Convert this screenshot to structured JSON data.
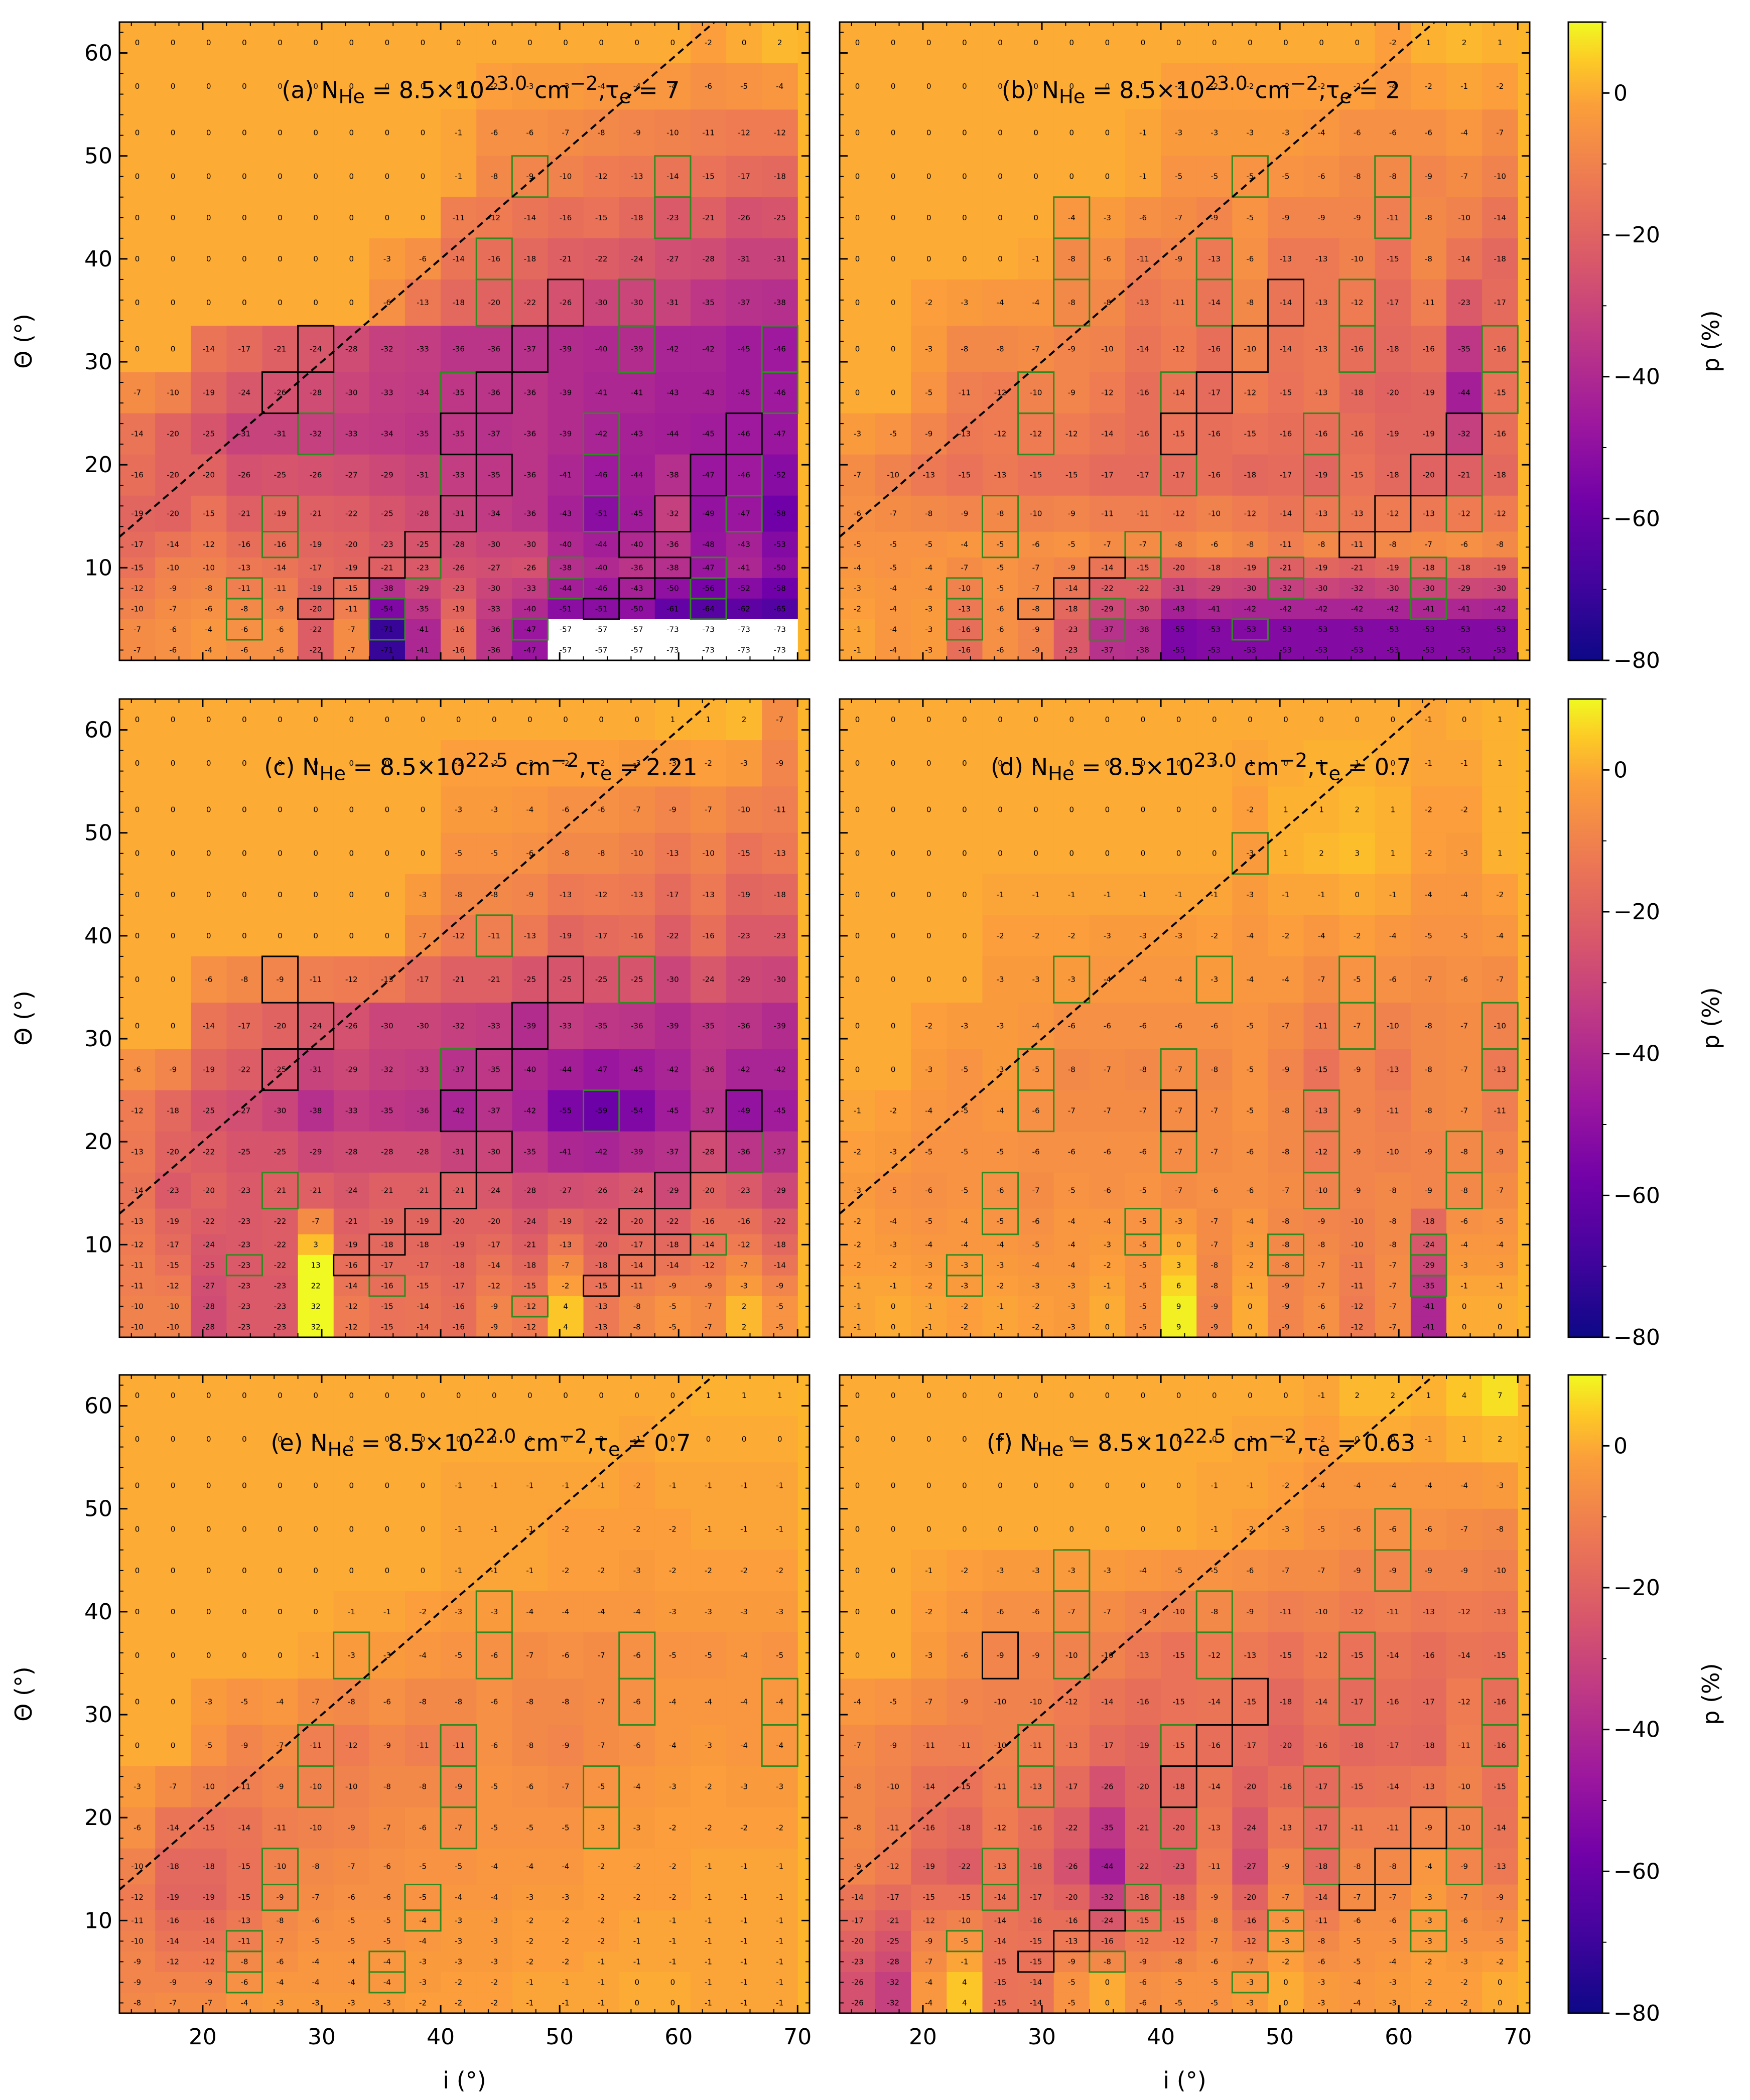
{
  "figure": {
    "colorbar": {
      "label": "p (%)",
      "ticks": [
        0,
        -20,
        -40,
        -60,
        -80
      ],
      "range": [
        -80,
        10
      ],
      "colormap": "plasma"
    },
    "x_axis": {
      "label": "i (°)",
      "ticks": [
        20,
        30,
        40,
        50,
        60,
        70
      ],
      "range": [
        13,
        71
      ]
    },
    "y_axis": {
      "label": "Θ (°)",
      "ticks": [
        10,
        20,
        30,
        40,
        50,
        60
      ],
      "range": [
        1,
        63
      ]
    },
    "diagonal_line": {
      "style": "dashed",
      "color": "#000000",
      "meaning": "Θ = i"
    },
    "box_colors": {
      "green": "#2f8b1f",
      "black": "#000000"
    }
  },
  "chart_data": [
    {
      "type": "heatmap",
      "panel": "(a)",
      "title_html": "(a) N<sub>He</sub> = 8.5×10<sup>23.0</sup> cm<sup>−2</sup>,τ<sub>e</sub> = 7",
      "title_text": "(a) NHe = 8.5×10^23.0 cm−2, τe = 7",
      "x": [
        14.5,
        17.5,
        20.5,
        23.5,
        26.5,
        29.5,
        32.5,
        35.5,
        38.5,
        41.5,
        44.5,
        47.5,
        50.5,
        53.5,
        56.5,
        59.5,
        62.5,
        65.5,
        68.5
      ],
      "y": [
        61,
        57,
        52,
        48,
        44,
        40,
        36,
        31,
        27,
        23,
        19,
        15,
        12,
        10,
        8,
        6,
        4,
        2
      ],
      "values_by_row": {
        "61": [
          0,
          0,
          0,
          0,
          0,
          0,
          0,
          0,
          0,
          0,
          0,
          0,
          0,
          0,
          0,
          0,
          -2,
          0,
          2
        ],
        "48": [
          0,
          0,
          0,
          0,
          0,
          0,
          0,
          0,
          0,
          -1,
          -8,
          -9,
          -10,
          -12,
          -13,
          -14,
          -15,
          -17,
          -18
        ],
        "44": [
          0,
          0,
          0,
          0,
          0,
          0,
          0,
          0,
          0,
          -11,
          -12,
          -14,
          -16,
          -15,
          -18,
          -23,
          -21,
          -26,
          -25
        ],
        "36": [
          0,
          0,
          0,
          0,
          0,
          0,
          0,
          -6,
          -13,
          -18,
          -20,
          -22,
          -26,
          -30,
          -30,
          -31,
          -35,
          -37,
          -38
        ],
        "31": [
          0,
          0,
          -14,
          -17,
          -21,
          -24,
          -28,
          -32,
          -33,
          -36,
          -36,
          -37,
          -39,
          -40,
          -39,
          -42,
          -42,
          -45,
          -46
        ],
        "23": [
          -14,
          -20,
          -25,
          -31,
          -31,
          -32,
          -33,
          -34,
          -35,
          -35,
          -37,
          -36,
          -39,
          -42,
          -43,
          -44,
          -45,
          -46,
          -47
        ],
        "15": [
          -19,
          -20,
          -15,
          -21,
          -19,
          -21,
          -22,
          -25,
          -28,
          -31,
          -34,
          -36,
          -43,
          -51,
          -45,
          -32,
          -49,
          -47,
          -58
        ],
        "10": [
          -15,
          -10,
          -10,
          -13,
          -14,
          -17,
          -19,
          -21,
          -23,
          -26,
          -27,
          -26,
          -38,
          -40,
          -36,
          -38,
          -47,
          -41,
          -50
        ],
        "4": [
          -7,
          -6,
          -4,
          -6,
          -6,
          -22,
          -7,
          -71,
          -41,
          -16,
          -36,
          -47,
          -57,
          -57,
          -57,
          -73,
          -73,
          -73,
          -73
        ]
      },
      "boxed_black": 24,
      "boxed_green": 55
    },
    {
      "type": "heatmap",
      "panel": "(b)",
      "title_html": "(b) N<sub>He</sub> = 8.5×10<sup>23.0</sup> cm<sup>−2</sup>,τ<sub>e</sub> = 2",
      "title_text": "(b) NHe = 8.5×10^23.0 cm−2, τe = 2",
      "values_by_row": {
        "61": [
          0,
          0,
          0,
          0,
          0,
          0,
          0,
          0,
          0,
          0,
          0,
          0,
          0,
          0,
          0,
          -2,
          1,
          2,
          1
        ],
        "48": [
          0,
          0,
          0,
          0,
          0,
          0,
          0,
          0,
          -1,
          -5,
          -5,
          -5,
          -5,
          -6,
          -8,
          -8,
          -9,
          -7,
          -10
        ],
        "40": [
          0,
          0,
          0,
          0,
          0,
          -1,
          -8,
          -6,
          -11,
          -9,
          -13,
          -6,
          -13,
          -13,
          -10,
          -15,
          -8,
          -14,
          -18
        ],
        "27": [
          0,
          0,
          -5,
          -11,
          -12,
          -10,
          -9,
          -12,
          -16,
          -14,
          -17,
          -12,
          -15,
          -13,
          -18,
          -20,
          -19,
          -44,
          -15
        ],
        "19": [
          -7,
          -10,
          -13,
          -15,
          -13,
          -15,
          -15,
          -17,
          -17,
          -17,
          -16,
          -18,
          -17,
          -19,
          -15,
          -18,
          -20,
          -21,
          -18
        ],
        "12": [
          -5,
          -5,
          -5,
          -4,
          -5,
          -6,
          -5,
          -7,
          -7,
          -8,
          -6,
          -8,
          -11,
          -8,
          -11,
          -8,
          -7,
          -6,
          -8
        ],
        "4": [
          -1,
          -4,
          -3,
          -16,
          -6,
          -9,
          -23,
          -37,
          -38,
          -55,
          -53,
          -53,
          -53,
          -53,
          -53,
          -53,
          -53,
          -53,
          -53
        ]
      },
      "boxed_black": 12,
      "boxed_green": 110
    },
    {
      "type": "heatmap",
      "panel": "(c)",
      "title_html": "(c) N<sub>He</sub> = 8.5×10<sup>22.5</sup> cm<sup>−2</sup>,τ<sub>e</sub> = 2.21",
      "title_text": "(c) NHe = 8.5×10^22.5 cm−2, τe = 2.21",
      "values_by_row": {
        "61": [
          0,
          0,
          0,
          0,
          0,
          0,
          0,
          0,
          0,
          0,
          0,
          0,
          0,
          0,
          0,
          1,
          1,
          2,
          -7
        ],
        "48": [
          0,
          0,
          0,
          0,
          0,
          0,
          0,
          0,
          0,
          -5,
          -5,
          -6,
          -8,
          -8,
          -10,
          -13,
          -10,
          -15,
          -13
        ],
        "40": [
          0,
          0,
          0,
          0,
          0,
          0,
          0,
          0,
          -7,
          -12,
          -11,
          -13,
          -19,
          -17,
          -16,
          -22,
          -16,
          -23,
          -23
        ],
        "31": [
          0,
          0,
          -14,
          -17,
          -20,
          -24,
          -26,
          -30,
          -30,
          -32,
          -33,
          -39,
          -33,
          -35,
          -36,
          -39,
          -35,
          -36,
          -39
        ],
        "23": [
          -12,
          -18,
          -25,
          -27,
          -30,
          -38,
          -33,
          -35,
          -36,
          -42,
          -37,
          -42,
          -55,
          -59,
          -54,
          -45,
          -37,
          -49,
          -45
        ],
        "15": [
          -14,
          -23,
          -20,
          -23,
          -21,
          -21,
          -24,
          -21,
          -21,
          -21,
          -24,
          -28,
          -27,
          -26,
          -24,
          -29,
          -20,
          -23,
          -29
        ],
        "4": [
          -10,
          -10,
          -28,
          -23,
          -23,
          32,
          -12,
          -15,
          -14,
          -16,
          -9,
          -12,
          4,
          -13,
          -8,
          -5,
          -7,
          2,
          -5
        ]
      },
      "boxed_black": 70,
      "boxed_green": 12
    },
    {
      "type": "heatmap",
      "panel": "(d)",
      "title_html": "(d) N<sub>He</sub> = 8.5×10<sup>23.0</sup> cm<sup>−2</sup>,τ<sub>e</sub> = 0.7",
      "title_text": "(d) NHe = 8.5×10^23.0 cm−2, τe = 0.7",
      "values_by_row": {
        "61": [
          0,
          0,
          0,
          0,
          0,
          0,
          0,
          0,
          0,
          0,
          0,
          0,
          0,
          0,
          0,
          0,
          -1,
          0,
          1
        ],
        "48": [
          0,
          0,
          0,
          0,
          0,
          0,
          0,
          0,
          0,
          0,
          0,
          -3,
          1,
          2,
          3,
          1,
          -2,
          -3,
          1
        ],
        "36": [
          0,
          0,
          0,
          0,
          -3,
          -3,
          -3,
          -4,
          -4,
          -4,
          -3,
          -4,
          -4,
          -7,
          -5,
          -6,
          -7,
          -6,
          -7
        ],
        "27": [
          0,
          0,
          -3,
          -5,
          -3,
          -5,
          -8,
          -7,
          -8,
          -7,
          -8,
          -5,
          -9,
          -15,
          -9,
          -13,
          -8,
          -7,
          -13
        ],
        "15": [
          -3,
          -5,
          -6,
          -5,
          -6,
          -7,
          -5,
          -6,
          -5,
          -7,
          -6,
          -6,
          -7,
          -10,
          -9,
          -8,
          -9,
          -8,
          -7
        ],
        "4": [
          -1,
          0,
          -1,
          -2,
          -1,
          -2,
          -3,
          0,
          -5,
          9,
          -9,
          0,
          -9,
          -6,
          -12,
          -7,
          -41,
          0,
          0
        ]
      },
      "boxed_black": 2,
      "boxed_green": 62
    },
    {
      "type": "heatmap",
      "panel": "(e)",
      "title_html": "(e) N<sub>He</sub> = 8.5×10<sup>22.0</sup> cm<sup>−2</sup>,τ<sub>e</sub> = 0.7",
      "title_text": "(e) NHe = 8.5×10^22.0 cm−2, τe = 0.7",
      "values_by_row": {
        "61": [
          0,
          0,
          0,
          0,
          0,
          0,
          0,
          0,
          0,
          0,
          0,
          0,
          0,
          0,
          0,
          0,
          1,
          1,
          1
        ],
        "44": [
          0,
          0,
          0,
          0,
          0,
          0,
          0,
          0,
          0,
          -1,
          -1,
          -1,
          -2,
          -2,
          -3,
          -2,
          -2,
          -2,
          -2
        ],
        "36": [
          0,
          0,
          0,
          0,
          0,
          -1,
          -3,
          -3,
          -4,
          -5,
          -6,
          -7,
          -6,
          -7,
          -6,
          -5,
          -5,
          -4,
          -5
        ],
        "27": [
          0,
          0,
          -5,
          -9,
          -7,
          -11,
          -12,
          -9,
          -11,
          -11,
          -6,
          -8,
          -9,
          -7,
          -6,
          -4,
          -3,
          -4,
          -4
        ],
        "19": [
          -6,
          -14,
          -15,
          -14,
          -11,
          -10,
          -9,
          -7,
          -6,
          -7,
          -5,
          -5,
          -5,
          -3,
          -3,
          -2,
          -2,
          -2,
          -2
        ],
        "13": [
          -12,
          -20,
          -20,
          -16,
          -10,
          -7,
          -6,
          -6,
          -5,
          -4,
          -4,
          -3,
          -3,
          -2,
          -2,
          -2,
          -1,
          -1,
          -1
        ],
        "2": [
          -8,
          -7,
          -7,
          -4,
          -3,
          -3,
          -3,
          -3,
          -2,
          -2,
          -2,
          -1,
          -1,
          -1,
          0,
          0,
          -1,
          -1,
          -1
        ]
      },
      "boxed_black": 0,
      "boxed_green": 55
    },
    {
      "type": "heatmap",
      "panel": "(f)",
      "title_html": "(f) N<sub>He</sub> = 8.5×10<sup>22.5</sup> cm<sup>−2</sup>,τ<sub>e</sub> = 0.63",
      "title_text": "(f) NHe = 8.5×10^22.5 cm−2, τe = 0.63",
      "values_by_row": {
        "61": [
          0,
          0,
          0,
          0,
          0,
          0,
          0,
          0,
          0,
          0,
          0,
          0,
          0,
          -1,
          2,
          2,
          1,
          4,
          7
        ],
        "48": [
          0,
          0,
          0,
          0,
          0,
          0,
          0,
          0,
          0,
          0,
          -1,
          -2,
          -3,
          -5,
          -6,
          -6,
          -6,
          -7,
          -8
        ],
        "36": [
          0,
          0,
          -3,
          -6,
          -9,
          -9,
          -10,
          -10,
          -13,
          -15,
          -12,
          -13,
          -15,
          -12,
          -15,
          -14,
          -16,
          -14,
          -15
        ],
        "27": [
          -7,
          -9,
          -11,
          -11,
          -10,
          -11,
          -13,
          -17,
          -19,
          -15,
          -16,
          -17,
          -20,
          -16,
          -18,
          -17,
          -18,
          -11,
          -16
        ],
        "15": [
          -9,
          -12,
          -19,
          -22,
          -13,
          -18,
          -26,
          -44,
          -22,
          -23,
          -11,
          -27,
          -9,
          -18,
          -8,
          -8,
          -4,
          -9,
          -13
        ],
        "4": [
          -26,
          -32,
          -4,
          4,
          -15,
          -14,
          -5,
          0,
          -6,
          -5,
          -5,
          -3,
          0,
          -3,
          -4,
          -3,
          -2,
          -2,
          0
        ]
      },
      "boxed_black": 10,
      "boxed_green": 90
    }
  ]
}
